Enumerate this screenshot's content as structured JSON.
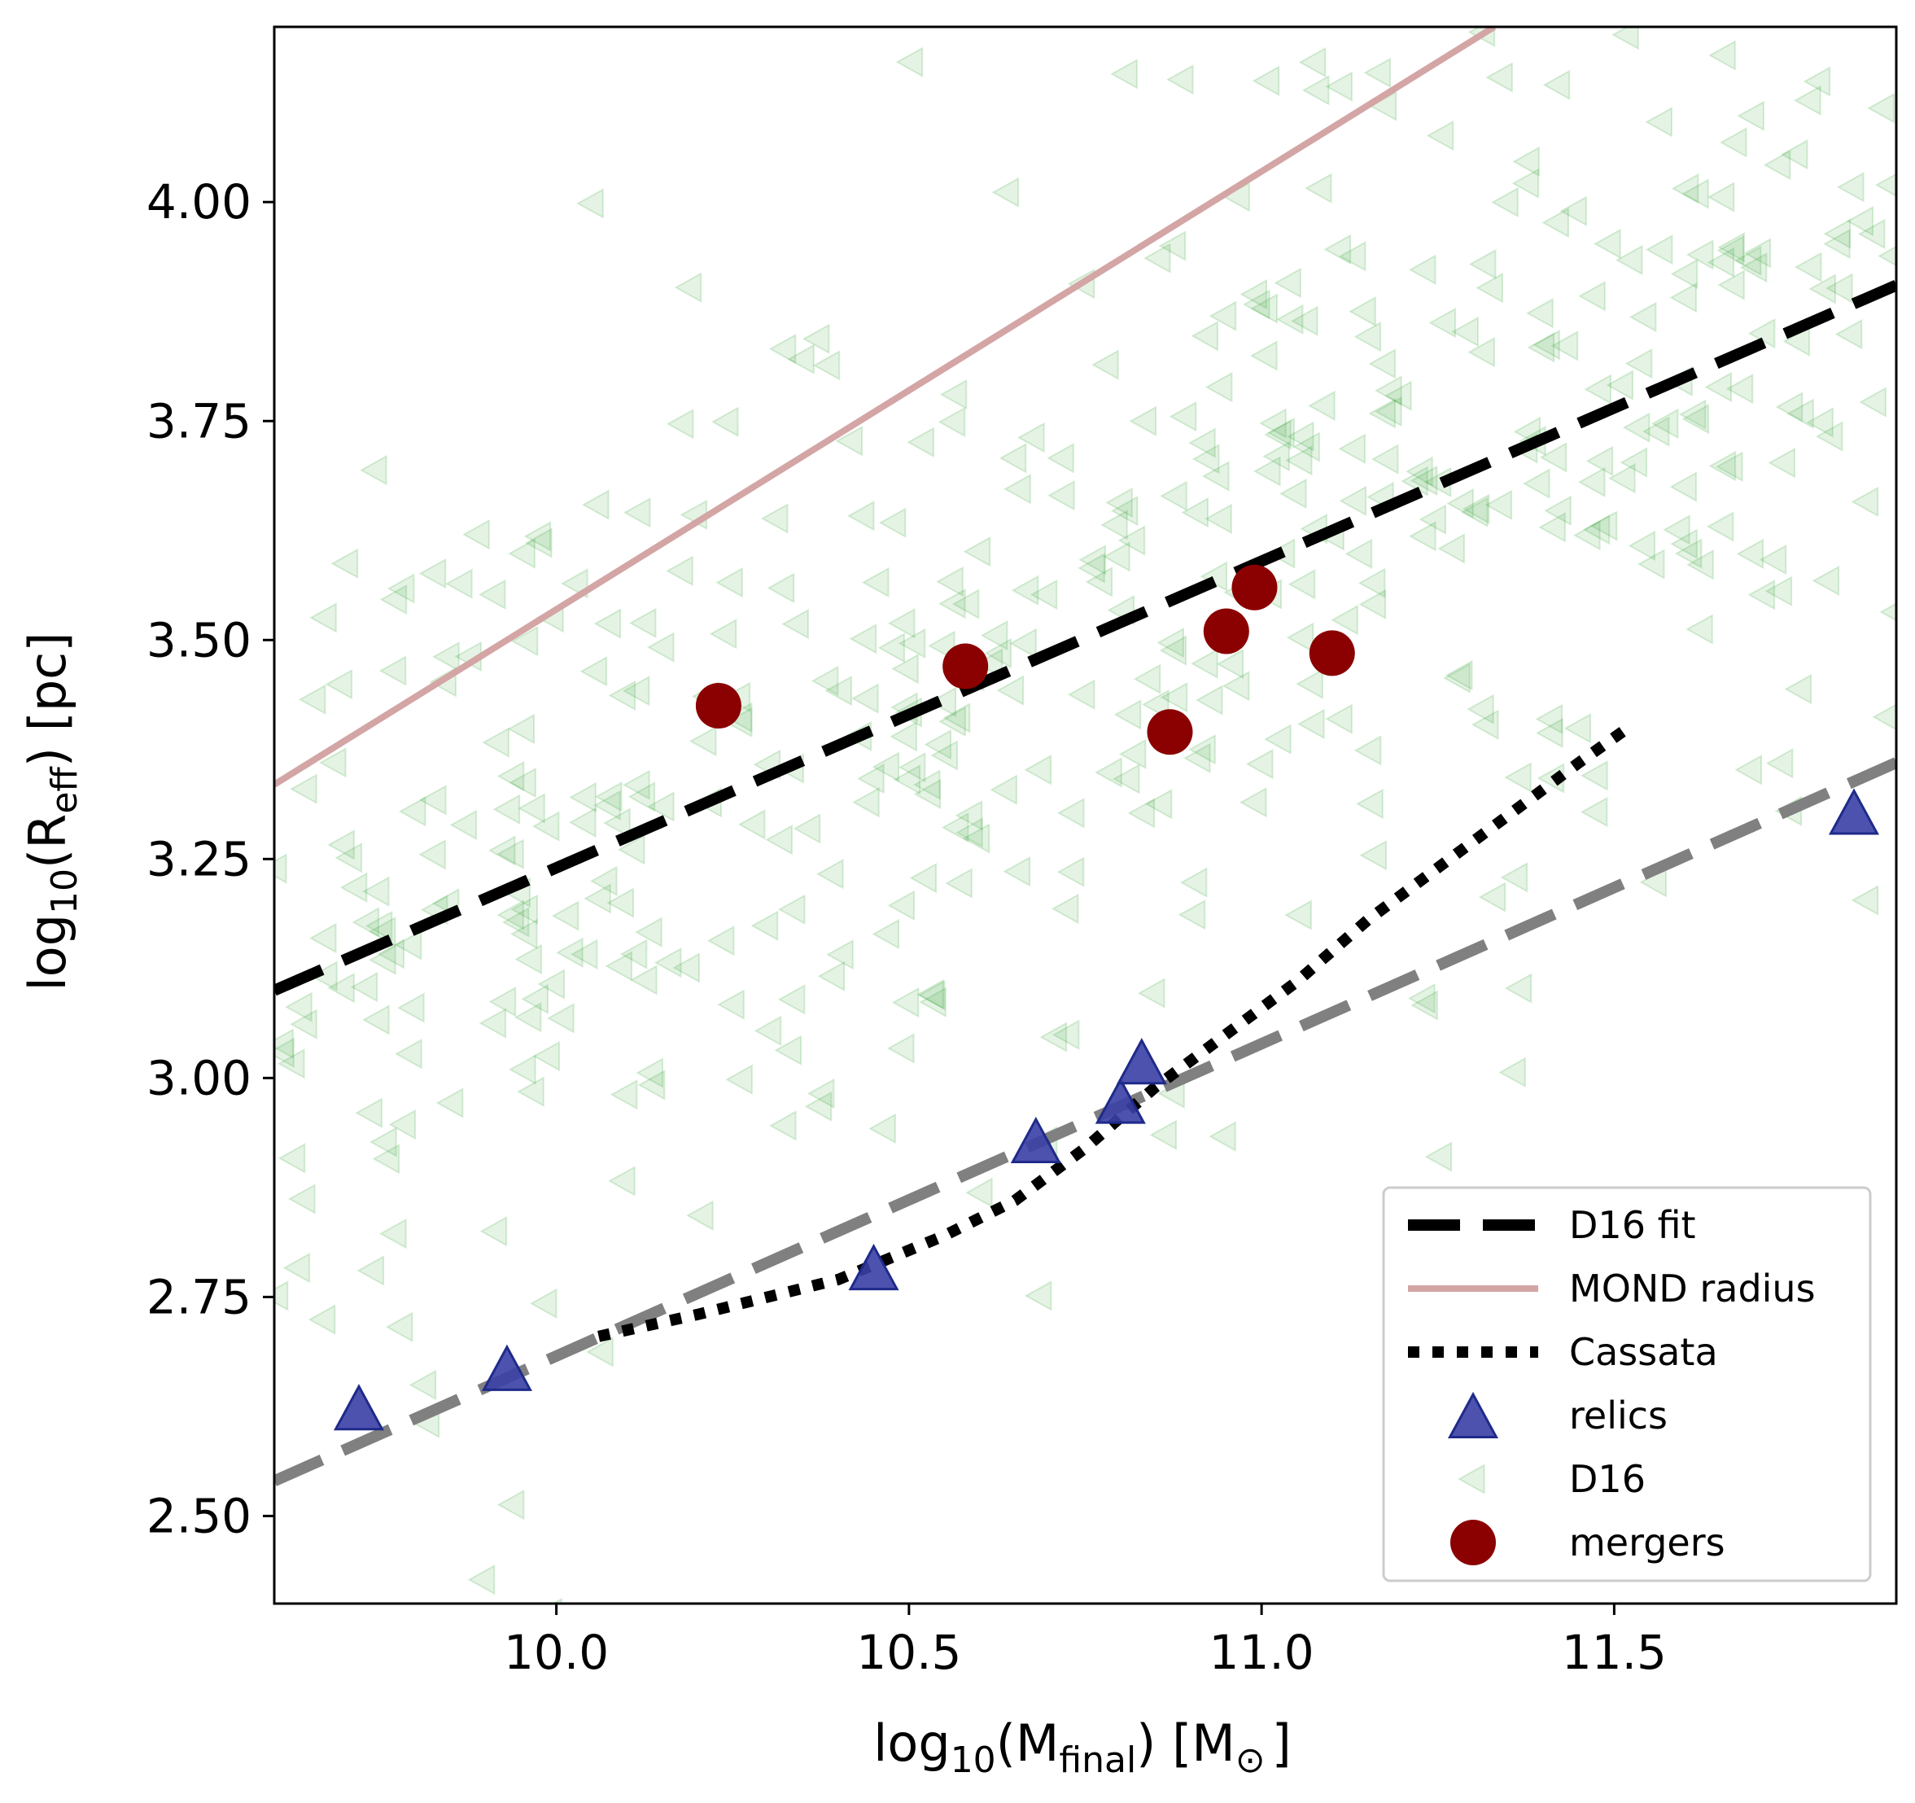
{
  "chart_data": {
    "type": "scatter",
    "title": "",
    "xlabel": {
      "prefix": "log",
      "sub1": "10",
      "mid": "(M",
      "sub2": "final",
      "suffix": ") [M",
      "sun": "⊙",
      "end": "]"
    },
    "ylabel": {
      "prefix": "log",
      "sub1": "10",
      "mid": "(R",
      "sub2": "eff",
      "suffix": ") [pc]"
    },
    "xlim": [
      9.6,
      11.9
    ],
    "ylim": [
      2.4,
      4.2
    ],
    "xticks": [
      10.0,
      10.5,
      11.0,
      11.5
    ],
    "xtick_labels": [
      "10.0",
      "10.5",
      "11.0",
      "11.5"
    ],
    "yticks": [
      2.5,
      2.75,
      3.0,
      3.25,
      3.5,
      3.75,
      4.0
    ],
    "ytick_labels": [
      "2.50",
      "2.75",
      "3.00",
      "3.25",
      "3.50",
      "3.75",
      "4.00"
    ],
    "grid": false,
    "legend_position": "lower-right",
    "colors": {
      "d16_fit": "#000000",
      "mond": "#d4a5a5",
      "cassata": "#000000",
      "gray_fit": "#808080",
      "relics_fill": "#3a3fa6",
      "relics_edge": "#1f2a8a",
      "d16_points": "#2ca02c",
      "mergers": "#8b0000"
    },
    "series": [
      {
        "name": "D16 fit",
        "kind": "line",
        "style": "dashed",
        "x": [
          9.6,
          11.9
        ],
        "y": [
          3.1,
          3.905
        ]
      },
      {
        "name": "MOND radius",
        "kind": "line",
        "style": "solid",
        "x": [
          9.6,
          11.33
        ],
        "y": [
          3.335,
          4.2
        ]
      },
      {
        "name": "Cassata",
        "kind": "line",
        "style": "dotted",
        "x": [
          10.06,
          10.2,
          10.4,
          10.55,
          10.65,
          10.75,
          10.85,
          10.95,
          11.05,
          11.15,
          11.25,
          11.35,
          11.45,
          11.52
        ],
        "y": [
          2.705,
          2.73,
          2.77,
          2.82,
          2.86,
          2.92,
          2.99,
          3.05,
          3.11,
          3.18,
          3.24,
          3.3,
          3.36,
          3.4
        ]
      },
      {
        "name": "gray fit",
        "kind": "line",
        "style": "dashed",
        "x": [
          9.6,
          11.9
        ],
        "y": [
          2.54,
          3.36
        ]
      },
      {
        "name": "relics",
        "kind": "triangle-up",
        "x": [
          9.72,
          9.93,
          10.45,
          10.68,
          10.8,
          10.83,
          11.84
        ],
        "y": [
          2.62,
          2.665,
          2.78,
          2.925,
          2.97,
          3.015,
          3.3
        ]
      },
      {
        "name": "mergers",
        "kind": "circle",
        "x": [
          10.23,
          10.58,
          10.87,
          10.95,
          10.99,
          11.1
        ],
        "y": [
          3.425,
          3.47,
          3.395,
          3.51,
          3.56,
          3.485
        ]
      },
      {
        "name": "D16",
        "kind": "triangle-left",
        "count": 520,
        "x_range": [
          9.6,
          11.9
        ],
        "y_center_at_x": [
          [
            9.6,
            3.1
          ],
          [
            11.9,
            3.9
          ]
        ],
        "y_scatter_sd": 0.28,
        "seed": 20160
      }
    ],
    "legend": [
      "D16 fit",
      "MOND radius",
      "Cassata",
      "relics",
      "D16",
      "mergers"
    ]
  }
}
